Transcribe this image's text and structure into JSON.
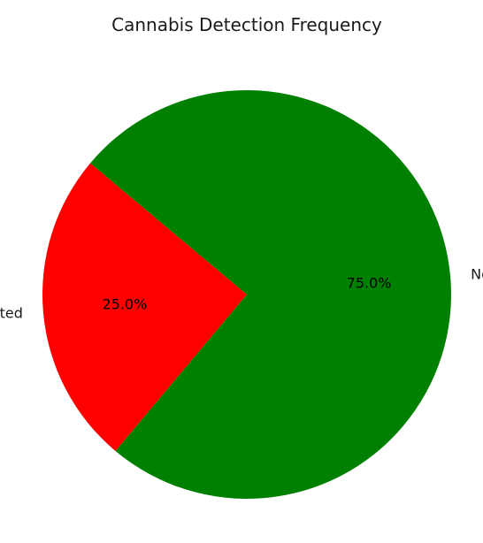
{
  "chart_data": {
    "type": "pie",
    "title": "Cannabis Detection Frequency",
    "categories": [
      "Cannabis Detected",
      "No Cannabis"
    ],
    "values": [
      25.0,
      75.0
    ],
    "value_labels": [
      "25.0%",
      "75.0%"
    ],
    "colors": [
      "#ff0000",
      "#008000"
    ],
    "start_angle_deg": 140,
    "direction": "counterclockwise",
    "legend": "none"
  }
}
